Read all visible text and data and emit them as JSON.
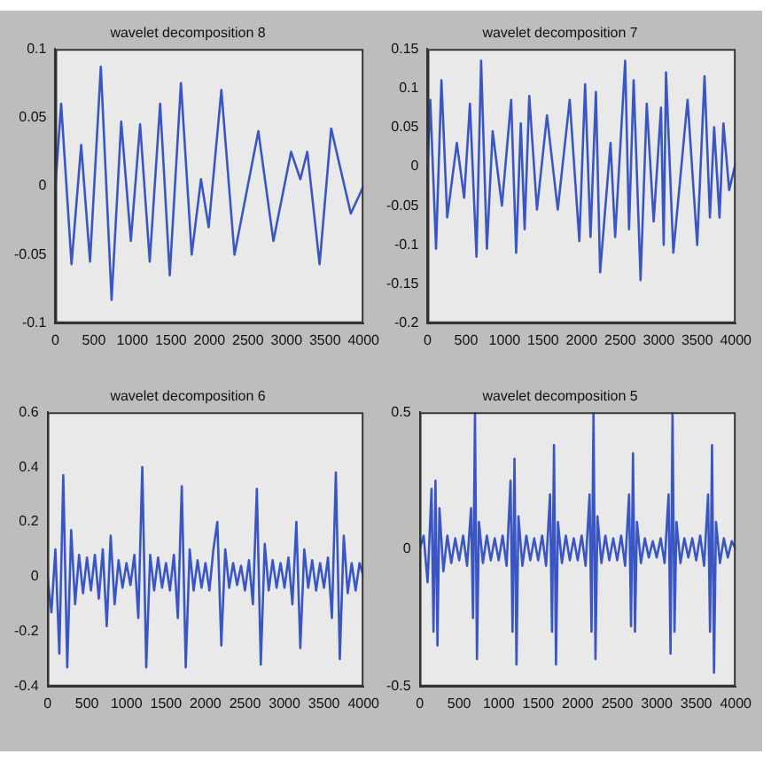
{
  "chart_data": [
    {
      "type": "line",
      "title": "wavelet decomposition 8",
      "color": "#3a56c4",
      "xlim": [
        0,
        4000
      ],
      "xticks": [
        0,
        500,
        1000,
        1500,
        2000,
        2500,
        3000,
        3500,
        4000
      ],
      "ylim": [
        -0.1,
        0.1
      ],
      "yticks": [
        -0.1,
        -0.05,
        0,
        0.05,
        0.1
      ],
      "x": [
        0,
        75,
        210,
        335,
        450,
        590,
        730,
        855,
        980,
        1100,
        1225,
        1360,
        1485,
        1630,
        1770,
        1890,
        1990,
        2155,
        2325,
        2635,
        2830,
        3060,
        3180,
        3270,
        3430,
        3580,
        3835,
        4000
      ],
      "values": [
        0,
        0.06,
        -0.057,
        0.03,
        -0.055,
        0.087,
        -0.083,
        0.047,
        -0.04,
        0.045,
        -0.055,
        0.06,
        -0.065,
        0.075,
        -0.05,
        0.005,
        -0.03,
        0.07,
        -0.05,
        0.04,
        -0.04,
        0.025,
        0.005,
        0.025,
        -0.057,
        0.042,
        -0.02,
        0
      ]
    },
    {
      "type": "line",
      "title": "wavelet decomposition 7",
      "color": "#3a56c4",
      "xlim": [
        0,
        4000
      ],
      "xticks": [
        0,
        500,
        1000,
        1500,
        2000,
        2500,
        3000,
        3500,
        4000
      ],
      "ylim": [
        -0.2,
        0.15
      ],
      "yticks": [
        -0.2,
        -0.15,
        -0.1,
        -0.05,
        0,
        0.05,
        0.1,
        0.15
      ],
      "x": [
        0,
        35,
        110,
        180,
        255,
        380,
        475,
        550,
        635,
        695,
        770,
        845,
        965,
        1085,
        1150,
        1210,
        1260,
        1320,
        1420,
        1550,
        1690,
        1845,
        1970,
        2045,
        2115,
        2185,
        2240,
        2375,
        2435,
        2565,
        2615,
        2675,
        2765,
        2845,
        2935,
        3030,
        3065,
        3095,
        3190,
        3375,
        3500,
        3595,
        3665,
        3720,
        3790,
        3840,
        3915,
        4000
      ],
      "values": [
        0,
        0.085,
        -0.105,
        0.11,
        -0.065,
        0.03,
        -0.04,
        0.08,
        -0.115,
        0.135,
        -0.105,
        0.045,
        -0.05,
        0.085,
        -0.11,
        0.055,
        -0.08,
        0.09,
        -0.055,
        0.065,
        -0.055,
        0.085,
        -0.095,
        0.105,
        -0.09,
        0.095,
        -0.135,
        0.03,
        -0.09,
        0.135,
        -0.08,
        0.11,
        -0.145,
        0.08,
        -0.07,
        0.075,
        -0.1,
        0.12,
        -0.11,
        0.085,
        -0.1,
        0.115,
        -0.065,
        0.05,
        -0.065,
        0.055,
        -0.03,
        0.005
      ]
    },
    {
      "type": "line",
      "title": "wavelet decomposition 6",
      "color": "#3a56c4",
      "xlim": [
        0,
        4000
      ],
      "xticks": [
        0,
        500,
        1000,
        1500,
        2000,
        2500,
        3000,
        3500,
        4000
      ],
      "ylim": [
        -0.4,
        0.6
      ],
      "yticks": [
        -0.4,
        -0.2,
        0,
        0.2,
        0.4,
        0.6
      ],
      "x": [
        0,
        50,
        100,
        150,
        200,
        250,
        300,
        350,
        400,
        450,
        500,
        550,
        600,
        650,
        700,
        750,
        800,
        850,
        900,
        950,
        1000,
        1050,
        1100,
        1150,
        1200,
        1250,
        1300,
        1350,
        1400,
        1450,
        1500,
        1550,
        1600,
        1650,
        1700,
        1750,
        1800,
        1850,
        1900,
        1950,
        2000,
        2050,
        2100,
        2150,
        2200,
        2250,
        2300,
        2350,
        2400,
        2450,
        2500,
        2550,
        2600,
        2650,
        2700,
        2750,
        2800,
        2850,
        2900,
        2950,
        3000,
        3050,
        3100,
        3150,
        3200,
        3250,
        3300,
        3350,
        3400,
        3450,
        3500,
        3550,
        3600,
        3650,
        3700,
        3750,
        3800,
        3850,
        3900,
        3950,
        4000
      ],
      "values": [
        0,
        -0.13,
        0.1,
        -0.28,
        0.37,
        -0.33,
        0.17,
        -0.1,
        0.08,
        -0.06,
        0.07,
        -0.05,
        0.08,
        -0.08,
        0.1,
        -0.18,
        0.15,
        -0.1,
        0.06,
        -0.04,
        0.05,
        -0.03,
        0.08,
        -0.15,
        0.4,
        -0.33,
        0.08,
        -0.05,
        0.07,
        -0.04,
        0.05,
        -0.05,
        0.08,
        -0.15,
        0.33,
        -0.33,
        0.1,
        -0.05,
        0.06,
        -0.04,
        0.05,
        -0.05,
        0.1,
        0.2,
        -0.25,
        0.1,
        -0.04,
        0.05,
        -0.03,
        0.04,
        -0.05,
        0.06,
        -0.1,
        0.32,
        -0.32,
        0.12,
        -0.05,
        0.06,
        -0.04,
        0.05,
        -0.04,
        0.07,
        -0.1,
        0.2,
        -0.26,
        0.1,
        -0.04,
        0.06,
        -0.05,
        0.05,
        -0.04,
        0.07,
        -0.15,
        0.38,
        -0.3,
        0.15,
        -0.06,
        0.05,
        -0.05,
        0.05,
        0
      ]
    },
    {
      "type": "line",
      "title": "wavelet decomposition 5",
      "color": "#3a56c4",
      "xlim": [
        0,
        4000
      ],
      "xticks": [
        0,
        500,
        1000,
        1500,
        2000,
        2500,
        3000,
        3500,
        4000
      ],
      "ylim": [
        -0.5,
        0.5
      ],
      "yticks": [
        -0.5,
        0,
        0.5
      ],
      "x": [
        0,
        50,
        100,
        150,
        175,
        200,
        225,
        250,
        300,
        350,
        400,
        450,
        500,
        550,
        600,
        650,
        675,
        700,
        725,
        750,
        800,
        850,
        900,
        950,
        1000,
        1050,
        1100,
        1150,
        1175,
        1200,
        1225,
        1250,
        1300,
        1350,
        1400,
        1450,
        1500,
        1550,
        1600,
        1650,
        1675,
        1700,
        1725,
        1750,
        1800,
        1850,
        1900,
        1950,
        2000,
        2050,
        2100,
        2150,
        2175,
        2200,
        2225,
        2250,
        2300,
        2350,
        2400,
        2450,
        2500,
        2550,
        2600,
        2650,
        2675,
        2700,
        2725,
        2750,
        2800,
        2850,
        2900,
        2950,
        3000,
        3050,
        3100,
        3150,
        3175,
        3200,
        3225,
        3250,
        3300,
        3350,
        3400,
        3450,
        3500,
        3550,
        3600,
        3650,
        3675,
        3700,
        3725,
        3750,
        3800,
        3850,
        3900,
        3950,
        4000
      ],
      "values": [
        0,
        0.05,
        -0.12,
        0.22,
        -0.3,
        0.25,
        -0.35,
        0.15,
        -0.08,
        0.05,
        -0.05,
        0.04,
        -0.04,
        0.05,
        -0.06,
        0.15,
        -0.25,
        0.5,
        -0.4,
        0.1,
        -0.05,
        0.05,
        -0.04,
        0.04,
        -0.04,
        0.05,
        -0.06,
        0.25,
        -0.3,
        0.33,
        -0.42,
        0.12,
        -0.06,
        0.05,
        -0.04,
        0.04,
        -0.04,
        0.05,
        -0.06,
        0.2,
        -0.3,
        0.38,
        -0.42,
        0.1,
        -0.05,
        0.05,
        -0.04,
        0.04,
        -0.04,
        0.05,
        -0.06,
        0.2,
        -0.3,
        0.5,
        -0.4,
        0.12,
        -0.05,
        0.05,
        -0.04,
        0.04,
        -0.04,
        0.05,
        -0.06,
        0.2,
        -0.28,
        0.35,
        -0.3,
        0.1,
        -0.05,
        0.04,
        -0.03,
        0.03,
        -0.03,
        0.04,
        -0.05,
        0.2,
        -0.38,
        0.5,
        -0.3,
        0.1,
        -0.05,
        0.04,
        -0.03,
        0.04,
        -0.04,
        0.05,
        -0.06,
        0.2,
        -0.3,
        0.38,
        -0.45,
        0.1,
        -0.05,
        0.04,
        -0.03,
        0.03,
        0
      ]
    }
  ]
}
